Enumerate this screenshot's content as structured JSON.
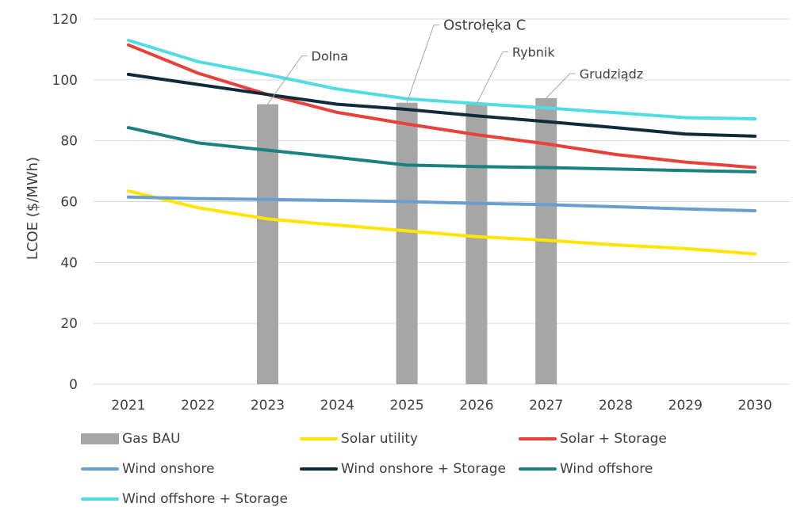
{
  "chart_data": {
    "type": "line",
    "title": "",
    "xlabel": "",
    "ylabel": "LCOE ($/MWh)",
    "ylim": [
      0,
      120
    ],
    "yticks": [
      0,
      20,
      40,
      60,
      80,
      100,
      120
    ],
    "categories": [
      "2021",
      "2022",
      "2023",
      "2024",
      "2025",
      "2026",
      "2027",
      "2028",
      "2029",
      "2030"
    ],
    "grid": true,
    "legend_position": "bottom",
    "bars": {
      "name": "Gas BAU",
      "color": "#A6A6A6",
      "values": [
        null,
        null,
        92,
        null,
        92.5,
        92,
        94,
        null,
        null,
        null
      ]
    },
    "series": [
      {
        "name": "Solar utility",
        "color": "#FFE500",
        "values": [
          63.5,
          58,
          54.3,
          52.3,
          50.4,
          48.5,
          47.3,
          45.8,
          44.6,
          42.8
        ]
      },
      {
        "name": "Solar + Storage",
        "color": "#E8413A",
        "values": [
          111.5,
          102.2,
          95.2,
          89.3,
          85.5,
          82,
          79,
          75.5,
          73,
          71.2
        ]
      },
      {
        "name": "Wind onshore",
        "color": "#6A9ECF",
        "values": [
          61.5,
          61,
          60.7,
          60.4,
          60,
          59.4,
          59,
          58.3,
          57.6,
          57
        ]
      },
      {
        "name": "Wind onshore + Storage",
        "color": "#0F2A3B",
        "values": [
          101.8,
          98.5,
          95.2,
          92,
          90.3,
          88.2,
          86.3,
          84.3,
          82.2,
          81.5
        ]
      },
      {
        "name": "Wind offshore",
        "color": "#1B8080",
        "values": [
          84.3,
          79.3,
          76.9,
          74.5,
          72,
          71.5,
          71.2,
          70.7,
          70.2,
          69.8
        ]
      },
      {
        "name": "Wind offshore + Storage",
        "color": "#4FDDE3",
        "values": [
          113,
          106,
          101.7,
          97,
          93.8,
          92.2,
          90.8,
          89.2,
          87.6,
          87.2
        ]
      }
    ],
    "annotations": [
      {
        "label": "Dolna",
        "year": "2023"
      },
      {
        "label": "Ostrołęka C",
        "year": "2025"
      },
      {
        "label": "Rybnik",
        "year": "2026"
      },
      {
        "label": "Grudziądz",
        "year": "2027"
      }
    ]
  }
}
